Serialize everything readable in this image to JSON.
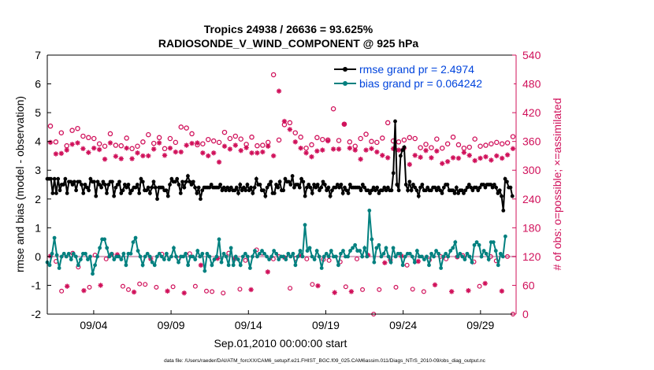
{
  "title_line1": "Tropics 24938 / 26636 = 93.625%",
  "title_line2": "RADIOSONDE_V_WIND_COMPONENT @ 925 hPa",
  "footer": "data file: /Users/raeder/DAI/ATM_forcXX/CAM6_setup/f.e21.FHIST_BGC.f09_025.CAM6assim.011/Diags_NTrS_2010-09/obs_diag_output.nc",
  "colors": {
    "rmse": "#000000",
    "bias": "#00807f",
    "obs": "#d0105a",
    "legend_text": "#0044dd",
    "zero_line": "#d6a6bf"
  },
  "chart_data": {
    "type": "line",
    "xlabel": "Sep.01,2010 00:00:00 start",
    "ylabel": "rmse and bias (model - observation)",
    "y2label": "# of obs: o=possible; ×=assimilated",
    "xlim": [
      1,
      31.3
    ],
    "ylim": [
      -2,
      7
    ],
    "y2lim": [
      0,
      540
    ],
    "x_tick_values": [
      4,
      9,
      14,
      19,
      24,
      29
    ],
    "x_tick_labels": [
      "09/04",
      "09/09",
      "09/14",
      "09/19",
      "09/24",
      "09/29"
    ],
    "y_ticks": [
      "-2",
      "-1",
      "0",
      "1",
      "2",
      "3",
      "4",
      "5",
      "6",
      "7"
    ],
    "y2_ticks": [
      "0",
      "60",
      "120",
      "180",
      "240",
      "300",
      "360",
      "420",
      "480",
      "540"
    ],
    "legend_position": "top-right",
    "series": [
      {
        "name": "rmse grand pr = 2.4974",
        "marker": "filled-circle",
        "values": [
          2.7,
          2.7,
          2.7,
          2.2,
          2.7,
          2.2,
          2.7,
          2.3,
          2.5,
          2.5,
          2.7,
          2.2,
          2.6,
          2.6,
          2.5,
          2.6,
          2.3,
          2.6,
          2.6,
          2.5,
          2.2,
          2.5,
          2.4,
          2.3,
          2.7,
          2.6,
          2.6,
          2.1,
          2.6,
          2.5,
          2.4,
          2.6,
          2.5,
          2.2,
          2.5,
          2.6,
          2.6,
          2.1,
          2.4,
          2.5,
          2.6,
          2.2,
          2.3,
          2.5,
          2.4,
          2.5,
          2.2,
          2.3,
          2.4,
          2.4,
          2.5,
          2.2,
          2.7,
          2.6,
          2.3,
          2.3,
          2.4,
          2.2,
          2.4,
          2.6,
          2.4,
          2.0,
          2.4,
          2.4,
          2.4,
          2.3,
          2.3,
          2.1,
          2.5,
          2.7,
          2.6,
          2.6,
          2.7,
          2.5,
          2.2,
          2.6,
          2.4,
          2.6,
          2.8,
          2.6,
          2.5,
          2.6,
          2.4,
          2.2,
          2.4,
          2.0,
          2.3,
          2.4,
          2.4,
          2.4,
          2.4,
          2.5,
          2.4,
          2.4,
          2.4,
          2.4,
          2.5,
          2.3,
          2.4,
          2.3,
          2.4,
          2.3,
          2.4,
          2.3,
          2.3,
          2.4,
          2.2,
          2.5,
          2.3,
          2.4,
          2.3,
          2.5,
          2.3,
          2.4,
          2.2,
          2.4,
          2.7,
          2.5,
          2.5,
          2.3,
          2.3,
          2.1,
          2.4,
          2.5,
          2.6,
          2.2,
          2.2,
          2.5,
          2.4,
          2.6,
          2.3,
          2.3,
          2.7,
          2.6,
          2.6,
          2.5,
          2.8,
          2.4,
          2.5,
          2.5,
          2.4,
          2.7,
          2.6,
          2.1,
          2.4,
          2.5,
          2.4,
          2.2,
          2.5,
          2.4,
          2.5,
          2.3,
          2.4,
          2.6,
          2.5,
          2.3,
          2.4,
          2.1,
          2.3,
          2.4,
          2.4,
          2.5,
          2.4,
          2.5,
          2.2,
          2.4,
          2.3,
          2.2,
          2.5,
          2.4,
          2.4,
          2.4,
          2.4,
          2.4,
          2.3,
          2.5,
          2.4,
          2.3,
          2.3,
          2.2,
          2.3,
          2.4,
          2.3,
          2.4,
          2.2,
          2.3,
          2.3,
          2.4,
          2.3,
          2.4,
          2.3,
          2.3,
          2.9,
          4.7,
          2.5,
          2.3,
          3.5,
          3.7,
          3.8,
          2.5,
          2.3,
          2.6,
          2.3,
          2.5,
          2.4,
          2.3,
          2.1,
          2.4,
          2.5,
          2.3,
          2.3,
          2.4,
          2.3,
          2.3,
          2.4,
          2.4,
          2.3,
          2.4,
          2.3,
          2.2,
          2.4,
          2.5,
          2.5,
          2.3,
          2.3,
          2.3,
          2.2,
          2.4,
          2.2,
          2.3,
          2.3,
          2.2,
          2.3,
          2.4,
          2.5,
          2.4,
          2.3,
          2.4,
          2.4,
          2.3,
          2.4,
          2.5,
          2.5,
          2.4,
          2.5,
          2.5,
          2.5,
          2.4,
          2.5,
          2.4,
          2.2,
          2.3,
          2.1,
          1.6,
          2.7,
          2.6,
          2.4,
          2.4,
          2.1
        ],
        "x_start": 1.0,
        "x_step": 0.1165
      },
      {
        "name": "bias grand pr = 0.064242",
        "marker": "filled-circle",
        "values": [
          -0.2,
          -0.3,
          0.1,
          0.65,
          0.05,
          -0.4,
          0.0,
          0.1,
          0.0,
          0.1,
          -0.1,
          0.1,
          0.0,
          -0.3,
          -0.1,
          0.1,
          0.1,
          -0.1,
          0.0,
          -0.6,
          -0.3,
          0.0,
          0.3,
          0.6,
          0.6,
          0.3,
          0.0,
          0.1,
          -0.1,
          0.0,
          0.0,
          -0.1,
          0.1,
          -0.3,
          0.1,
          0.1,
          0.5,
          0.65,
          0.2,
          0.0,
          -0.3,
          0.0,
          0.1,
          0.0,
          -0.2,
          -0.3,
          0.0,
          0.1,
          0.0,
          -0.1,
          0.1,
          -0.1,
          0.0,
          0.3,
          0.0,
          -0.2,
          0.0,
          0.0,
          0.1,
          -0.3,
          0.0,
          0.0,
          -0.1,
          0.2,
          0.0,
          0.1,
          -0.5,
          0.1,
          0.0,
          -0.3,
          -0.1,
          0.0,
          0.6,
          -0.2,
          0.1,
          0.0,
          -0.3,
          0.3,
          -0.3,
          0.0,
          -0.1,
          -0.3,
          0.0,
          0.1,
          0.0,
          -0.4,
          0.0,
          0.2,
          0.0,
          0.1,
          0.2,
          0.1,
          0.0,
          -0.1,
          0.0,
          0.2,
          0.1,
          -0.1,
          0.0,
          0.0,
          -0.1,
          0.1,
          0.0,
          0.1,
          -0.3,
          0.0,
          0.2,
          0.0,
          1.1,
          0.2,
          0.3,
          0.0,
          -0.1,
          0.2,
          0.0,
          -0.4,
          0.0,
          0.1,
          0.0,
          0.2,
          0.0,
          0.0,
          -0.3,
          0.1,
          0.2,
          0.0,
          0.0,
          0.2,
          0.3,
          0.4,
          0.2,
          0.2,
          0.0,
          0.3,
          0.0,
          1.6,
          0.6,
          -0.2,
          0.3,
          0.4,
          0.0,
          0.1,
          0.3,
          0.0,
          -0.2,
          0.3,
          0.0,
          0.1,
          0.1,
          -0.3,
          0.0,
          0.1,
          0.1,
          0.0,
          -0.2,
          0.2,
          0.0,
          0.0,
          -0.1,
          0.0,
          -0.3,
          0.1,
          0.0,
          0.2,
          0.1,
          -0.4,
          0.0,
          0.1,
          0.0,
          0.2,
          0.3,
          0.5,
          0.0,
          0.1,
          0.0,
          -0.1,
          0.1,
          0.0,
          -0.2,
          0.4,
          0.5,
          0.4,
          0.0,
          0.2,
          0.1,
          -0.1,
          0.5,
          0.5,
          0.2,
          -0.3,
          0.1,
          0.0,
          0.7
        ],
        "x_start": 1.0,
        "x_step": 0.1542
      }
    ],
    "obs_possible_y2": [
      392,
      359,
      378,
      351,
      383,
      387,
      371,
      368,
      366,
      355,
      350,
      376,
      352,
      351,
      367,
      345,
      350,
      359,
      374,
      356,
      368,
      345,
      366,
      358,
      390,
      388,
      376,
      353,
      355,
      364,
      361,
      358,
      379,
      366,
      371,
      365,
      354,
      369,
      351,
      352,
      358,
      499,
      363,
      395,
      399,
      378,
      369,
      346,
      353,
      368,
      364,
      363,
      428,
      362,
      396,
      359,
      350,
      366,
      375,
      360,
      358,
      367,
      399,
      361,
      359,
      363,
      368,
      366,
      347,
      354,
      347,
      365,
      346,
      355,
      369,
      353,
      346,
      348,
      365,
      350,
      352,
      355,
      358,
      355,
      357,
      370
    ],
    "obs_assimilated_y2": [
      358,
      334,
      335,
      342,
      354,
      357,
      345,
      337,
      346,
      343,
      323,
      357,
      329,
      324,
      346,
      324,
      336,
      330,
      330,
      344,
      357,
      331,
      346,
      338,
      338,
      352,
      356,
      357,
      336,
      330,
      336,
      317,
      350,
      344,
      352,
      341,
      347,
      336,
      336,
      338,
      350,
      330,
      465,
      402,
      385,
      359,
      346,
      336,
      328,
      340,
      342,
      361,
      344,
      344,
      396,
      346,
      342,
      323,
      342,
      345,
      338,
      331,
      326,
      345,
      342,
      346,
      312,
      331,
      327,
      341,
      326,
      340,
      314,
      318,
      326,
      325,
      337,
      331,
      320,
      325,
      328,
      321,
      330,
      325,
      332,
      345
    ],
    "obs_low_y2": [
      121,
      110,
      48,
      58,
      127,
      98,
      49,
      56,
      123,
      60,
      115,
      125,
      124,
      58,
      51,
      46,
      63,
      62,
      115,
      56,
      125,
      48,
      57,
      115,
      44,
      126,
      58,
      102,
      48,
      47,
      116,
      44,
      127,
      115,
      52,
      112,
      51,
      134,
      127,
      88,
      115,
      120,
      118,
      54,
      116,
      122,
      115,
      62,
      59,
      114,
      112,
      45,
      109,
      57,
      47,
      115,
      51,
      123,
      0,
      51,
      107,
      113,
      56,
      121,
      102,
      52,
      110,
      47,
      113,
      61,
      120,
      115,
      47,
      119,
      122,
      49,
      109,
      58,
      64,
      120,
      111,
      48,
      120,
      0
    ]
  }
}
